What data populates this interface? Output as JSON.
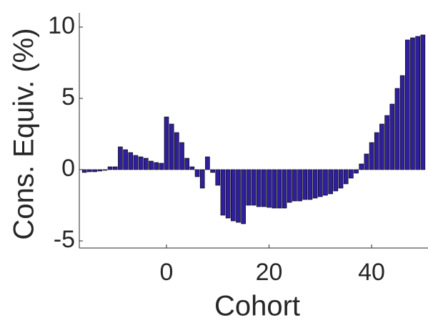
{
  "chart_data": {
    "type": "bar",
    "x_label": "Cohort",
    "y_label": "Cons. Equiv. (%)",
    "color": "#2f1f9a",
    "edge_color": "#000000",
    "x": [
      -16,
      -15,
      -14,
      -13,
      -12,
      -11,
      -10,
      -9,
      -8,
      -7,
      -6,
      -5,
      -4,
      -3,
      -2,
      -1,
      0,
      1,
      2,
      3,
      4,
      5,
      6,
      7,
      8,
      9,
      10,
      11,
      12,
      13,
      14,
      15,
      16,
      17,
      18,
      19,
      20,
      21,
      22,
      23,
      24,
      25,
      26,
      27,
      28,
      29,
      30,
      31,
      32,
      33,
      34,
      35,
      36,
      37,
      38,
      39,
      40,
      41,
      42,
      43,
      44,
      45,
      46,
      47,
      48,
      49,
      50
    ],
    "values": [
      -0.2,
      -0.15,
      -0.15,
      -0.1,
      -0.05,
      0.2,
      0.2,
      1.6,
      1.4,
      1.2,
      1.0,
      0.9,
      0.8,
      0.6,
      0.5,
      0.45,
      3.7,
      3.2,
      2.6,
      1.9,
      0.8,
      0.2,
      -0.5,
      -1.3,
      0.9,
      -0.2,
      -1.1,
      -3.2,
      -3.4,
      -3.6,
      -3.7,
      -3.8,
      -2.5,
      -2.5,
      -2.6,
      -2.6,
      -2.65,
      -2.7,
      -2.7,
      -2.7,
      -2.3,
      -2.2,
      -2.2,
      -2.1,
      -2.1,
      -2.0,
      -1.9,
      -1.8,
      -1.7,
      -1.5,
      -1.3,
      -1.0,
      -0.6,
      -0.25,
      0.4,
      1.1,
      1.9,
      2.6,
      3.2,
      3.8,
      4.6,
      5.7,
      6.6,
      9.1,
      9.25,
      9.35,
      9.45
    ],
    "xlim": [
      -17,
      51
    ],
    "ylim": [
      -5.5,
      11
    ],
    "xticks": [
      0,
      20,
      40
    ],
    "yticks": [
      -5,
      0,
      5,
      10
    ],
    "grid": false
  }
}
